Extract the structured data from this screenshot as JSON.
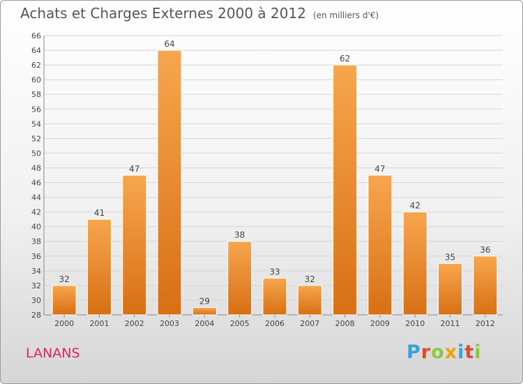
{
  "chart_data": {
    "type": "bar",
    "title": "Achats et Charges Externes 2000 à 2012",
    "subtitle": "(en milliers d'€)",
    "categories": [
      "2000",
      "2001",
      "2002",
      "2003",
      "2004",
      "2005",
      "2006",
      "2007",
      "2008",
      "2009",
      "2010",
      "2011",
      "2012"
    ],
    "values": [
      32,
      41,
      47,
      64,
      29,
      38,
      33,
      32,
      62,
      47,
      42,
      35,
      36
    ],
    "ylim": [
      28,
      66
    ],
    "ytick_step": 2,
    "grid": true,
    "bar_color": "#f0902e"
  },
  "footer": {
    "commune": "LANANS",
    "logo_letters": [
      "P",
      "r",
      "o",
      "x",
      "i",
      "t",
      "i"
    ],
    "logo_colors": [
      "#3aa0dc",
      "#e04a2a",
      "#8dc63f",
      "#f0a000",
      "#3aa0dc",
      "#e04a2a",
      "#8dc63f"
    ]
  }
}
